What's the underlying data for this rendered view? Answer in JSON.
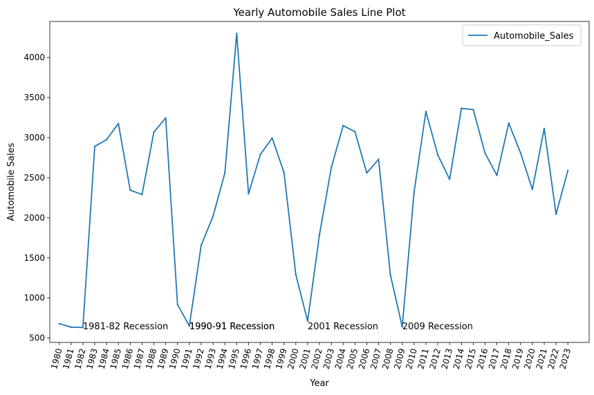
{
  "chart_data": {
    "type": "line",
    "title": "Yearly Automobile Sales Line Plot",
    "xlabel": "Year",
    "ylabel": "Automobile Sales",
    "x": [
      1980,
      1981,
      1982,
      1983,
      1984,
      1985,
      1986,
      1987,
      1988,
      1989,
      1990,
      1991,
      1992,
      1993,
      1994,
      1995,
      1996,
      1997,
      1998,
      1999,
      2000,
      2001,
      2002,
      2003,
      2004,
      2005,
      2006,
      2007,
      2008,
      2009,
      2010,
      2011,
      2012,
      2013,
      2014,
      2015,
      2016,
      2017,
      2018,
      2019,
      2020,
      2021,
      2022,
      2023
    ],
    "series": [
      {
        "name": "Automobile_Sales",
        "color": "#1f77b4",
        "values": [
          680,
          635,
          632,
          2890,
          2975,
          3175,
          2345,
          2290,
          3070,
          3245,
          920,
          650,
          1655,
          2020,
          2560,
          4300,
          2300,
          2790,
          2995,
          2565,
          1290,
          710,
          1790,
          2625,
          3150,
          3075,
          2560,
          2730,
          1285,
          640,
          2320,
          3325,
          2785,
          2480,
          3365,
          3350,
          2805,
          2530,
          3180,
          2810,
          2355,
          3115,
          2045,
          2590
        ]
      }
    ],
    "xlim": [
      1979.2,
      2024.8
    ],
    "ylim": [
      445,
      4450
    ],
    "yticks": [
      500,
      1000,
      1500,
      2000,
      2500,
      3000,
      3500,
      4000
    ],
    "annotations": [
      {
        "text": "1981-82 Recession",
        "x": 1982,
        "y": 650
      },
      {
        "text": "1990-91 Recession",
        "x": 1991,
        "y": 650
      },
      {
        "text": "1990-91 Recession",
        "x": 1991,
        "y": 650
      },
      {
        "text": "2001 Recession",
        "x": 2001,
        "y": 650
      },
      {
        "text": "2009 Recession",
        "x": 2009,
        "y": 650
      }
    ],
    "legend_position": "top-right",
    "grid": false
  }
}
